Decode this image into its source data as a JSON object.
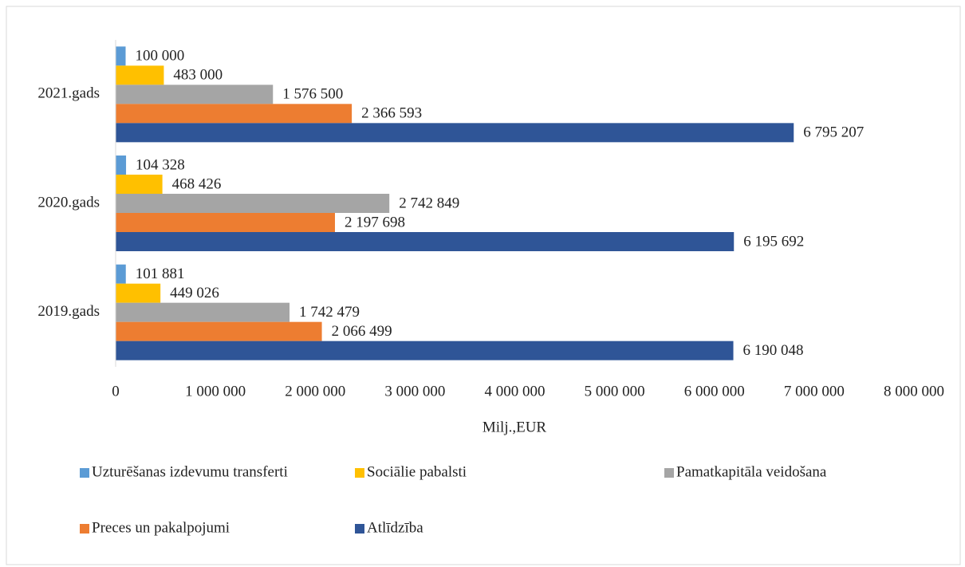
{
  "chart_data": {
    "type": "barh",
    "categories": [
      "2019.gads",
      "2020.gads",
      "2021.gads"
    ],
    "xlabel": "Milj.,EUR",
    "xlim": [
      0,
      8000000
    ],
    "xticks": [
      0,
      {
        "value": 1000000,
        "label": "1 000 000"
      },
      {
        "value": 2000000,
        "label": "2 000 000"
      },
      {
        "value": 3000000,
        "label": "3 000 000"
      },
      {
        "value": 4000000,
        "label": "4 000 000"
      },
      {
        "value": 5000000,
        "label": "5 000 000"
      },
      {
        "value": 6000000,
        "label": "6 000 000"
      },
      {
        "value": 7000000,
        "label": "7 000 000"
      },
      {
        "value": 8000000,
        "label": "8 000 000"
      }
    ],
    "legend": "bottom",
    "series": [
      {
        "name": "Uzturēšanas izdevumu transferti",
        "color": "#5b9bd5",
        "values": [
          101881,
          104328,
          100000
        ],
        "value_labels": [
          "101 881",
          "104 328",
          "100 000"
        ]
      },
      {
        "name": "Sociālie pabalsti",
        "color": "#ffc000",
        "values": [
          449026,
          468426,
          483000
        ],
        "value_labels": [
          "449 026",
          "468 426",
          "483 000"
        ]
      },
      {
        "name": "Pamatkapitāla veidošana",
        "color": "#a5a5a5",
        "values": [
          1742479,
          2742849,
          1576500
        ],
        "value_labels": [
          "1 742 479",
          "2 742 849",
          "1 576 500"
        ]
      },
      {
        "name": "Preces un pakalpojumi",
        "color": "#ed7d31",
        "values": [
          2066499,
          2197698,
          2366593
        ],
        "value_labels": [
          "2 066 499",
          "2 197 698",
          "2 366 593"
        ]
      },
      {
        "name": "Atlīdzība",
        "color": "#2f5597",
        "values": [
          6190048,
          6195692,
          6795207
        ],
        "value_labels": [
          "6 190 048",
          "6 195 692",
          "6 795 207"
        ]
      }
    ]
  }
}
